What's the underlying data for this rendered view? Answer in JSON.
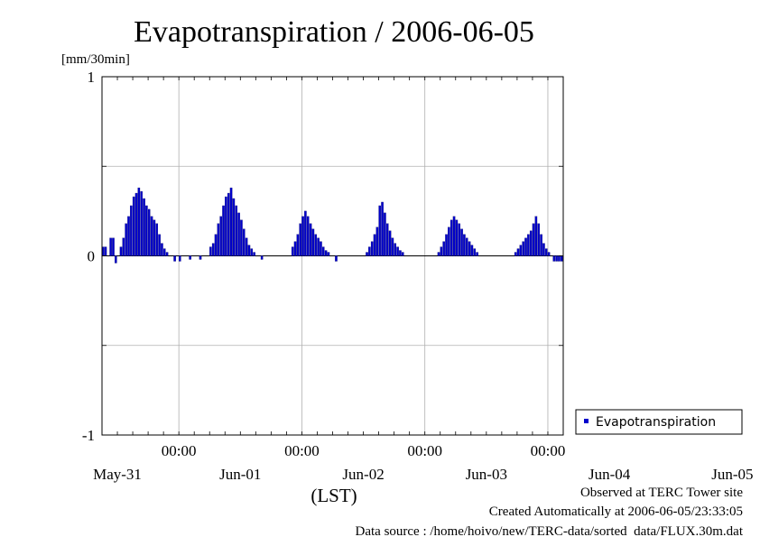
{
  "chart_data": {
    "type": "bar",
    "title": "Evapotranspiration / 2006-06-05",
    "ylabel": "[mm/30min]",
    "xlabel": "(LST)",
    "ylim": [
      -1,
      1
    ],
    "yticks": [
      "1",
      "0",
      "-1"
    ],
    "xticks_time": [
      "00:00",
      "00:00",
      "00:00",
      "00:00",
      "00:00"
    ],
    "xticks_date": [
      "May-31",
      "Jun-01",
      "Jun-02",
      "Jun-03",
      "Jun-04",
      "Jun-05"
    ],
    "grid": true,
    "legend_position": "right",
    "x_start": "2006-05-30T09:00",
    "interval_minutes": 30,
    "series": [
      {
        "name": "Evapotranspiration",
        "color": "#0000cc",
        "values": [
          0.05,
          0.05,
          0.0,
          0.1,
          0.1,
          -0.04,
          0.0,
          0.05,
          0.1,
          0.18,
          0.22,
          0.28,
          0.33,
          0.35,
          0.38,
          0.36,
          0.32,
          0.28,
          0.26,
          0.22,
          0.2,
          0.18,
          0.12,
          0.07,
          0.04,
          0.02,
          0.0,
          0.0,
          -0.03,
          0.0,
          -0.03,
          0.0,
          0.0,
          0.0,
          -0.02,
          0.0,
          0.0,
          0.0,
          -0.02,
          0.0,
          0.0,
          0.0,
          0.05,
          0.07,
          0.12,
          0.18,
          0.22,
          0.28,
          0.33,
          0.35,
          0.38,
          0.32,
          0.28,
          0.24,
          0.2,
          0.15,
          0.1,
          0.06,
          0.04,
          0.02,
          0.0,
          0.0,
          -0.02,
          0.0,
          0.0,
          0.0,
          0.0,
          0.0,
          0.0,
          0.0,
          0.0,
          0.0,
          0.0,
          0.0,
          0.05,
          0.08,
          0.12,
          0.18,
          0.22,
          0.25,
          0.22,
          0.18,
          0.15,
          0.12,
          0.1,
          0.08,
          0.05,
          0.03,
          0.02,
          0.0,
          0.0,
          -0.03,
          0.0,
          0.0,
          0.0,
          0.0,
          0.0,
          0.0,
          0.0,
          0.0,
          0.0,
          0.0,
          0.0,
          0.02,
          0.05,
          0.08,
          0.12,
          0.16,
          0.28,
          0.3,
          0.24,
          0.18,
          0.14,
          0.1,
          0.07,
          0.05,
          0.03,
          0.02,
          0.0,
          0.0,
          0.0,
          0.0,
          0.0,
          0.0,
          0.0,
          0.0,
          0.0,
          0.0,
          0.0,
          0.0,
          0.0,
          0.02,
          0.05,
          0.08,
          0.12,
          0.16,
          0.2,
          0.22,
          0.2,
          0.18,
          0.15,
          0.12,
          0.1,
          0.08,
          0.06,
          0.04,
          0.02,
          0.0,
          0.0,
          0.0,
          0.0,
          0.0,
          0.0,
          0.0,
          0.0,
          0.0,
          0.0,
          0.0,
          0.0,
          0.0,
          0.0,
          0.02,
          0.04,
          0.06,
          0.08,
          0.1,
          0.12,
          0.14,
          0.18,
          0.22,
          0.18,
          0.12,
          0.07,
          0.04,
          0.02,
          0.0,
          -0.03,
          -0.03,
          -0.03,
          -0.03
        ]
      }
    ]
  },
  "footer": {
    "line1": "Observed at TERC Tower site",
    "line2": "Created Automatically at 2006-06-05/23:33:05",
    "line3": "Data source : /home/hoivo/new/TERC-data/sorted  data/FLUX.30m.dat"
  }
}
